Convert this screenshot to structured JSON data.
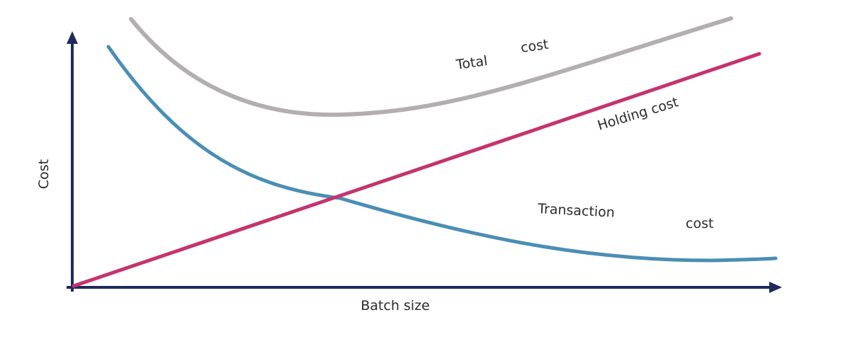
{
  "chart_data": {
    "type": "line",
    "title": "",
    "xlabel": "Batch size",
    "ylabel": "Cost",
    "grid": false,
    "legend": "none",
    "series": [
      {
        "name": "Total cost",
        "label_parts": [
          "Total",
          "cost"
        ],
        "color": "#b3aeb0"
      },
      {
        "name": "Holding cost",
        "label_parts": [
          "Holding cost"
        ],
        "color": "#c5336e"
      },
      {
        "name": "Transaction cost",
        "label_parts": [
          "Transaction",
          "cost"
        ],
        "color": "#4a8eb5"
      }
    ],
    "axis_color": "#1f2a5c"
  }
}
